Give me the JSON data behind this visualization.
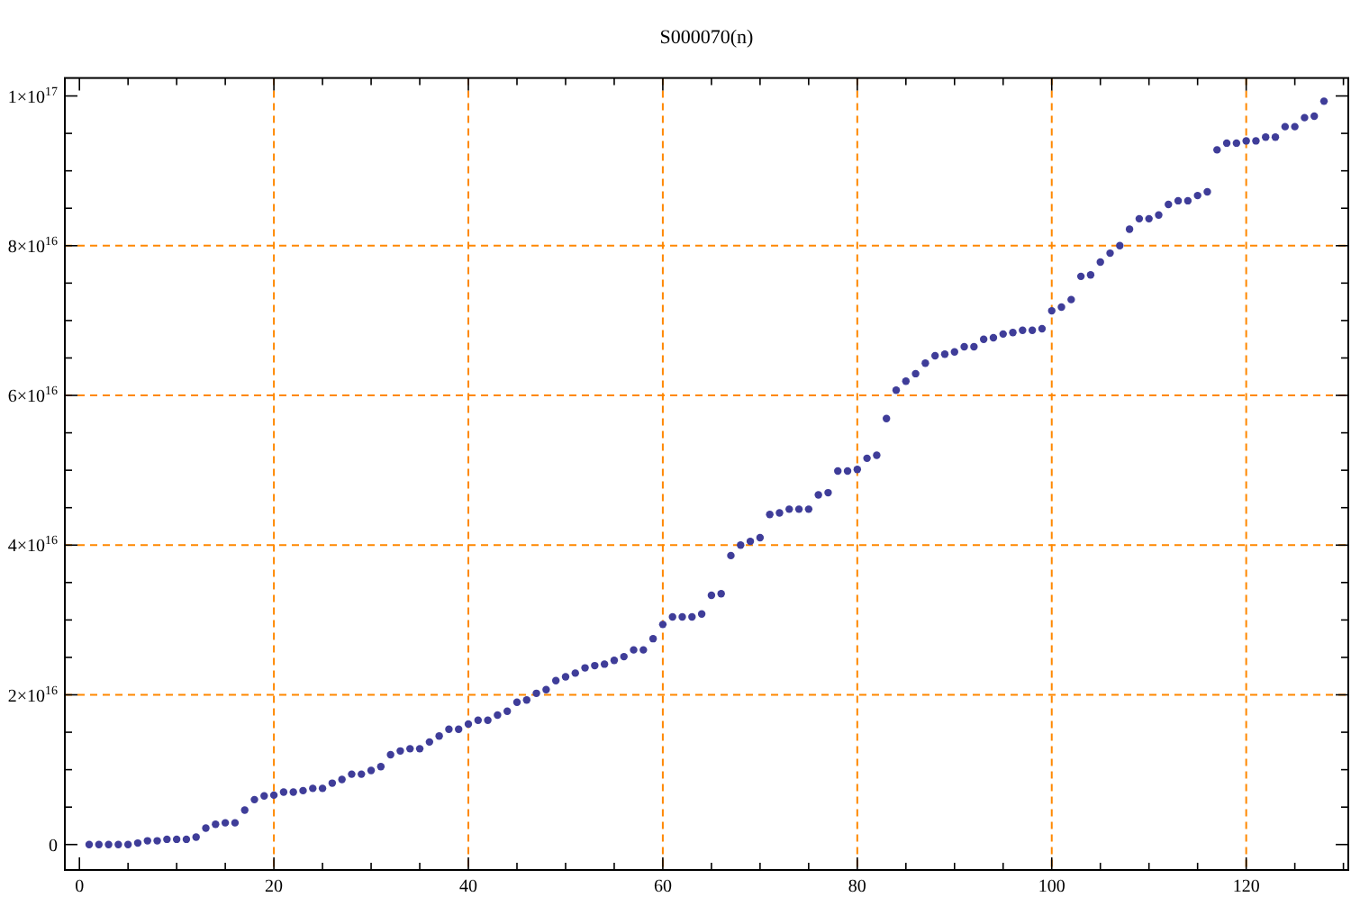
{
  "chart_data": {
    "type": "scatter",
    "title": "S000070(n)",
    "x": [
      1,
      2,
      3,
      4,
      5,
      6,
      7,
      8,
      9,
      10,
      11,
      12,
      13,
      14,
      15,
      16,
      17,
      18,
      19,
      20,
      21,
      22,
      23,
      24,
      25,
      26,
      27,
      28,
      29,
      30,
      31,
      32,
      33,
      34,
      35,
      36,
      37,
      38,
      39,
      40,
      41,
      42,
      43,
      44,
      45,
      46,
      47,
      48,
      49,
      50,
      51,
      52,
      53,
      54,
      55,
      56,
      57,
      58,
      59,
      60,
      61,
      62,
      63,
      64,
      65,
      66,
      67,
      68,
      69,
      70,
      71,
      72,
      73,
      74,
      75,
      76,
      77,
      78,
      79,
      80,
      81,
      82,
      83,
      84,
      85,
      86,
      87,
      88,
      89,
      90,
      91,
      92,
      93,
      94,
      95,
      96,
      97,
      98,
      99,
      100,
      101,
      102,
      103,
      104,
      105,
      106,
      107,
      108,
      109,
      110,
      111,
      112,
      113,
      114,
      115,
      116,
      117,
      118,
      119,
      120,
      121,
      122,
      123,
      124,
      125,
      126,
      127,
      128
    ],
    "values": [
      0,
      0,
      0,
      0,
      0,
      200000000000000.0,
      500000000000000.0,
      500000000000000.0,
      700000000000000.0,
      700000000000000.0,
      700000000000000.0,
      1000000000000000.0,
      2200000000000000.0,
      2700000000000000.0,
      2900000000000000.0,
      2900000000000000.0,
      4600000000000000.0,
      6000000000000000.0,
      6500000000000000.0,
      6600000000000000.0,
      7000000000000000.0,
      7000000000000000.0,
      7200000000000000.0,
      7500000000000000.0,
      7500000000000000.0,
      8200000000000000.0,
      8700000000000000.0,
      9400000000000000.0,
      9400000000000000.0,
      9900000000000000.0,
      1.04e+16,
      1.2e+16,
      1.25e+16,
      1.28e+16,
      1.28e+16,
      1.37e+16,
      1.45e+16,
      1.54e+16,
      1.54e+16,
      1.61e+16,
      1.66e+16,
      1.66e+16,
      1.73e+16,
      1.78e+16,
      1.9e+16,
      1.93e+16,
      2.02e+16,
      2.07e+16,
      2.19e+16,
      2.24e+16,
      2.29e+16,
      2.36e+16,
      2.39e+16,
      2.41e+16,
      2.46e+16,
      2.51e+16,
      2.6e+16,
      2.6e+16,
      2.75e+16,
      2.94e+16,
      3.04e+16,
      3.04e+16,
      3.04e+16,
      3.08e+16,
      3.33e+16,
      3.35e+16,
      3.86e+16,
      4e+16,
      4.05e+16,
      4.1e+16,
      4.41e+16,
      4.43e+16,
      4.48e+16,
      4.48e+16,
      4.48e+16,
      4.67e+16,
      4.7e+16,
      4.99e+16,
      4.99e+16,
      5.01e+16,
      5.16e+16,
      5.2e+16,
      5.69e+16,
      6.07e+16,
      6.19e+16,
      6.29e+16,
      6.43e+16,
      6.53e+16,
      6.55e+16,
      6.58e+16,
      6.65e+16,
      6.65e+16,
      6.75e+16,
      6.77e+16,
      6.82e+16,
      6.84e+16,
      6.87e+16,
      6.87e+16,
      6.89e+16,
      7.13e+16,
      7.18e+16,
      7.28e+16,
      7.59e+16,
      7.61e+16,
      7.78e+16,
      7.9e+16,
      8e+16,
      8.22e+16,
      8.36e+16,
      8.36e+16,
      8.41e+16,
      8.55e+16,
      8.6e+16,
      8.6e+16,
      8.67e+16,
      8.72e+16,
      9.28e+16,
      9.37e+16,
      9.37e+16,
      9.4e+16,
      9.4e+16,
      9.45e+16,
      9.45e+16,
      9.59e+16,
      9.59e+16,
      9.71e+16,
      9.73e+16,
      9.93e+16
    ],
    "color": "#3f3d99",
    "marker": "circle",
    "xlim": [
      -1.5,
      130.5
    ],
    "ylim": [
      -3400000000000000.0,
      1.024e+17
    ],
    "xticks": [
      0,
      {
        "value": 5,
        "label": null
      },
      {
        "value": 10,
        "label": null
      },
      {
        "value": 15,
        "label": null
      },
      20,
      {
        "value": 25,
        "label": null
      },
      {
        "value": 30,
        "label": null
      },
      {
        "value": 35,
        "label": null
      },
      40,
      {
        "value": 45,
        "label": null
      },
      {
        "value": 50,
        "label": null
      },
      {
        "value": 55,
        "label": null
      },
      60,
      {
        "value": 65,
        "label": null
      },
      {
        "value": 70,
        "label": null
      },
      {
        "value": 75,
        "label": null
      },
      80,
      {
        "value": 85,
        "label": null
      },
      {
        "value": 90,
        "label": null
      },
      {
        "value": 95,
        "label": null
      },
      100,
      {
        "value": 105,
        "label": null
      },
      {
        "value": 110,
        "label": null
      },
      {
        "value": 115,
        "label": null
      },
      120,
      {
        "value": 125,
        "label": null
      },
      {
        "value": 130,
        "label": null
      }
    ],
    "yticks": [
      0,
      {
        "value": 5000000000000000.0,
        "label": null
      },
      {
        "value": 1e+16,
        "label": null
      },
      {
        "value": 1.5e+16,
        "label": null
      },
      {
        "value": 2e+16,
        "label": "2×10$^{16}$"
      },
      {
        "value": 2.5e+16,
        "label": null
      },
      {
        "value": 3e+16,
        "label": null
      },
      {
        "value": 3.5e+16,
        "label": null
      },
      {
        "value": 4e+16,
        "label": "4×10$^{16}$"
      },
      {
        "value": 4.5e+16,
        "label": null
      },
      {
        "value": 5e+16,
        "label": null
      },
      {
        "value": 5.5e+16,
        "label": null
      },
      {
        "value": 6e+16,
        "label": "6×10$^{16}$"
      },
      {
        "value": 6.5e+16,
        "label": null
      },
      {
        "value": 7e+16,
        "label": null
      },
      {
        "value": 7.5e+16,
        "label": null
      },
      {
        "value": 8e+16,
        "label": "8×10$^{16}$"
      },
      {
        "value": 8.5e+16,
        "label": null
      },
      {
        "value": 9e+16,
        "label": null
      },
      {
        "value": 9.5e+16,
        "label": null
      },
      {
        "value": 1e+17,
        "label": "1×10$^{17}$"
      }
    ],
    "grid": true
  }
}
